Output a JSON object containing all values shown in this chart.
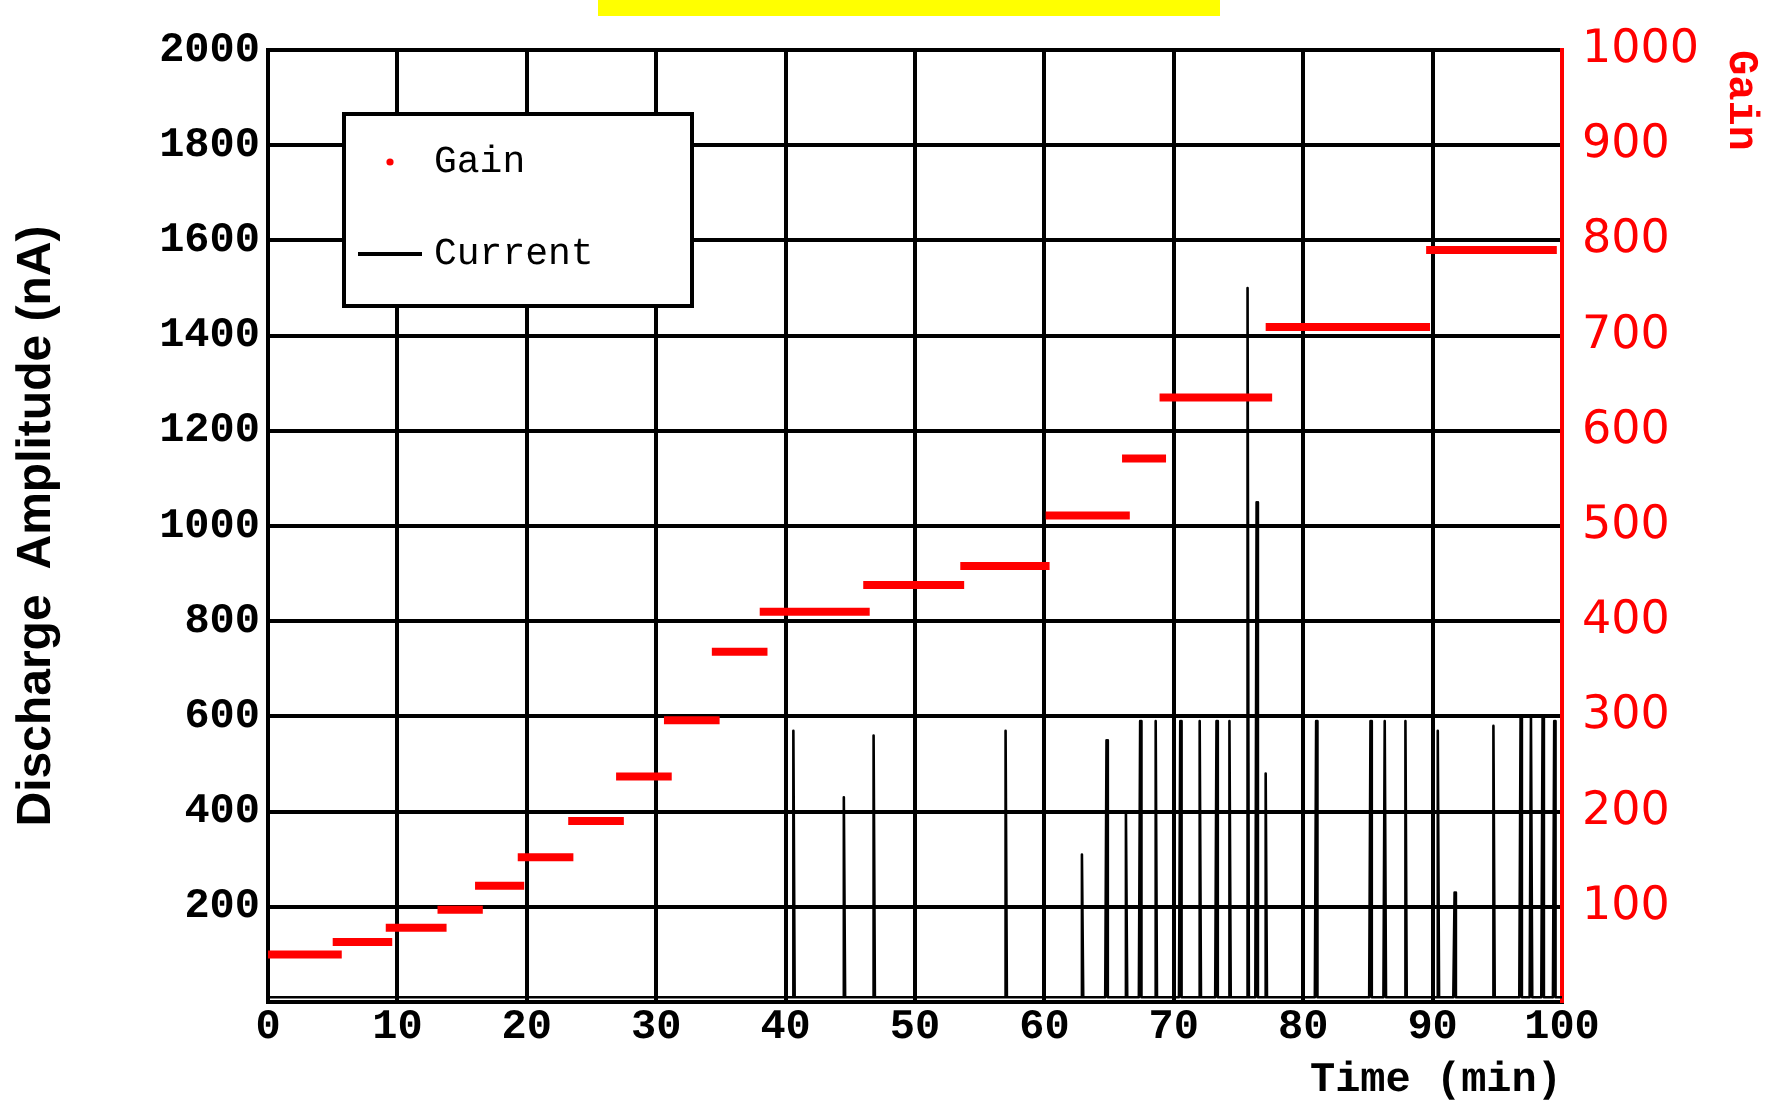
{
  "chart_data": {
    "type": "line",
    "xlabel": "Time (min)",
    "ylabel": "Discharge  Amplitude (nA)",
    "y2label": "Gain",
    "xlim": [
      0,
      100
    ],
    "xticks": [
      0,
      10,
      20,
      30,
      40,
      50,
      60,
      70,
      80,
      90,
      100
    ],
    "ylim": [
      0,
      2000
    ],
    "yticks": [
      200,
      400,
      600,
      800,
      1000,
      1200,
      1400,
      1600,
      1800,
      2000
    ],
    "y2lim": [
      0,
      1000
    ],
    "y2ticks": [
      100,
      200,
      300,
      400,
      500,
      600,
      700,
      800,
      900,
      1000
    ],
    "grid": true,
    "legend": "top left",
    "series": [
      {
        "name": "Gain",
        "axis": "y2",
        "color": "#ff0000",
        "x": [
          0,
          5.7
        ],
        "values": [
          50,
          50
        ]
      },
      {
        "axis": "y2",
        "color": "#ff0000",
        "x": [
          5,
          9.6
        ],
        "values": [
          63,
          63
        ]
      },
      {
        "axis": "y2",
        "color": "#ff0000",
        "x": [
          9.1,
          13.8
        ],
        "values": [
          78,
          78
        ]
      },
      {
        "axis": "y2",
        "color": "#ff0000",
        "x": [
          13.1,
          16.6
        ],
        "values": [
          97,
          97
        ]
      },
      {
        "axis": "y2",
        "color": "#ff0000",
        "x": [
          16,
          19.8
        ],
        "values": [
          122,
          122
        ]
      },
      {
        "axis": "y2",
        "color": "#ff0000",
        "x": [
          19.3,
          23.6
        ],
        "values": [
          152,
          152
        ]
      },
      {
        "axis": "y2",
        "color": "#ff0000",
        "x": [
          23.2,
          27.5
        ],
        "values": [
          190,
          190
        ]
      },
      {
        "axis": "y2",
        "color": "#ff0000",
        "x": [
          26.9,
          31.2
        ],
        "values": [
          237,
          237
        ]
      },
      {
        "axis": "y2",
        "color": "#ff0000",
        "x": [
          30.6,
          34.9
        ],
        "values": [
          296,
          296
        ]
      },
      {
        "axis": "y2",
        "color": "#ff0000",
        "x": [
          34.3,
          38.6
        ],
        "values": [
          368,
          368
        ]
      },
      {
        "axis": "y2",
        "color": "#ff0000",
        "x": [
          38,
          46.5
        ],
        "values": [
          410,
          410
        ]
      },
      {
        "axis": "y2",
        "color": "#ff0000",
        "x": [
          46,
          53.8
        ],
        "values": [
          438,
          438
        ]
      },
      {
        "axis": "y2",
        "color": "#ff0000",
        "x": [
          53.5,
          60.4
        ],
        "values": [
          458,
          458
        ]
      },
      {
        "axis": "y2",
        "color": "#ff0000",
        "x": [
          60.1,
          66.6
        ],
        "values": [
          511,
          511
        ]
      },
      {
        "axis": "y2",
        "color": "#ff0000",
        "x": [
          66,
          69.4
        ],
        "values": [
          571,
          571
        ]
      },
      {
        "axis": "y2",
        "color": "#ff0000",
        "x": [
          68.9,
          77.6
        ],
        "values": [
          635,
          635
        ]
      },
      {
        "axis": "y2",
        "color": "#ff0000",
        "x": [
          77.1,
          89.8
        ],
        "values": [
          709,
          709
        ]
      },
      {
        "axis": "y2",
        "color": "#ff0000",
        "x": [
          89.5,
          99.6
        ],
        "values": [
          790,
          790
        ]
      },
      {
        "name": "Current",
        "color": "#000000",
        "x": [
          0,
          40.5,
          40.6,
          40.7,
          44.4,
          44.5,
          44.6,
          46.7,
          46.8,
          46.9,
          56.9,
          57,
          57.1,
          62.8,
          62.9,
          63,
          64.7,
          64.8,
          64.9,
          66.2,
          66.3,
          66.4,
          67.3,
          67.4,
          67.5,
          68.5,
          68.6,
          68.7,
          70.4,
          70.5,
          70.6,
          71.9,
          72,
          72.1,
          73.2,
          73.3,
          73.4,
          74.2,
          74.3,
          74.4,
          75.6,
          75.7,
          75.8,
          76.3,
          76.4,
          76.5,
          77,
          77.1,
          77.2,
          80.9,
          81,
          81.1,
          85.1,
          85.2,
          85.3,
          86.2,
          86.3,
          86.4,
          87.8,
          87.9,
          88,
          90.3,
          90.4,
          90.5,
          91.6,
          91.7,
          91.8,
          94.6,
          94.7,
          94.8,
          96.7,
          96.8,
          96.9,
          97.5,
          97.6,
          97.7,
          98.4,
          98.5,
          98.6,
          99.3,
          99.4,
          99.5,
          100
        ],
        "values": [
          10,
          10,
          570,
          10,
          10,
          430,
          10,
          10,
          560,
          10,
          10,
          570,
          10,
          10,
          310,
          10,
          10,
          550,
          10,
          10,
          400,
          10,
          10,
          590,
          10,
          10,
          590,
          10,
          10,
          590,
          10,
          10,
          590,
          10,
          10,
          590,
          10,
          10,
          590,
          10,
          10,
          1500,
          10,
          10,
          1050,
          10,
          10,
          480,
          10,
          10,
          590,
          10,
          10,
          590,
          10,
          10,
          590,
          10,
          10,
          590,
          10,
          10,
          570,
          10,
          10,
          230,
          10,
          10,
          580,
          10,
          10,
          600,
          10,
          10,
          600,
          10,
          10,
          600,
          10,
          10,
          590,
          10,
          10
        ]
      }
    ]
  }
}
